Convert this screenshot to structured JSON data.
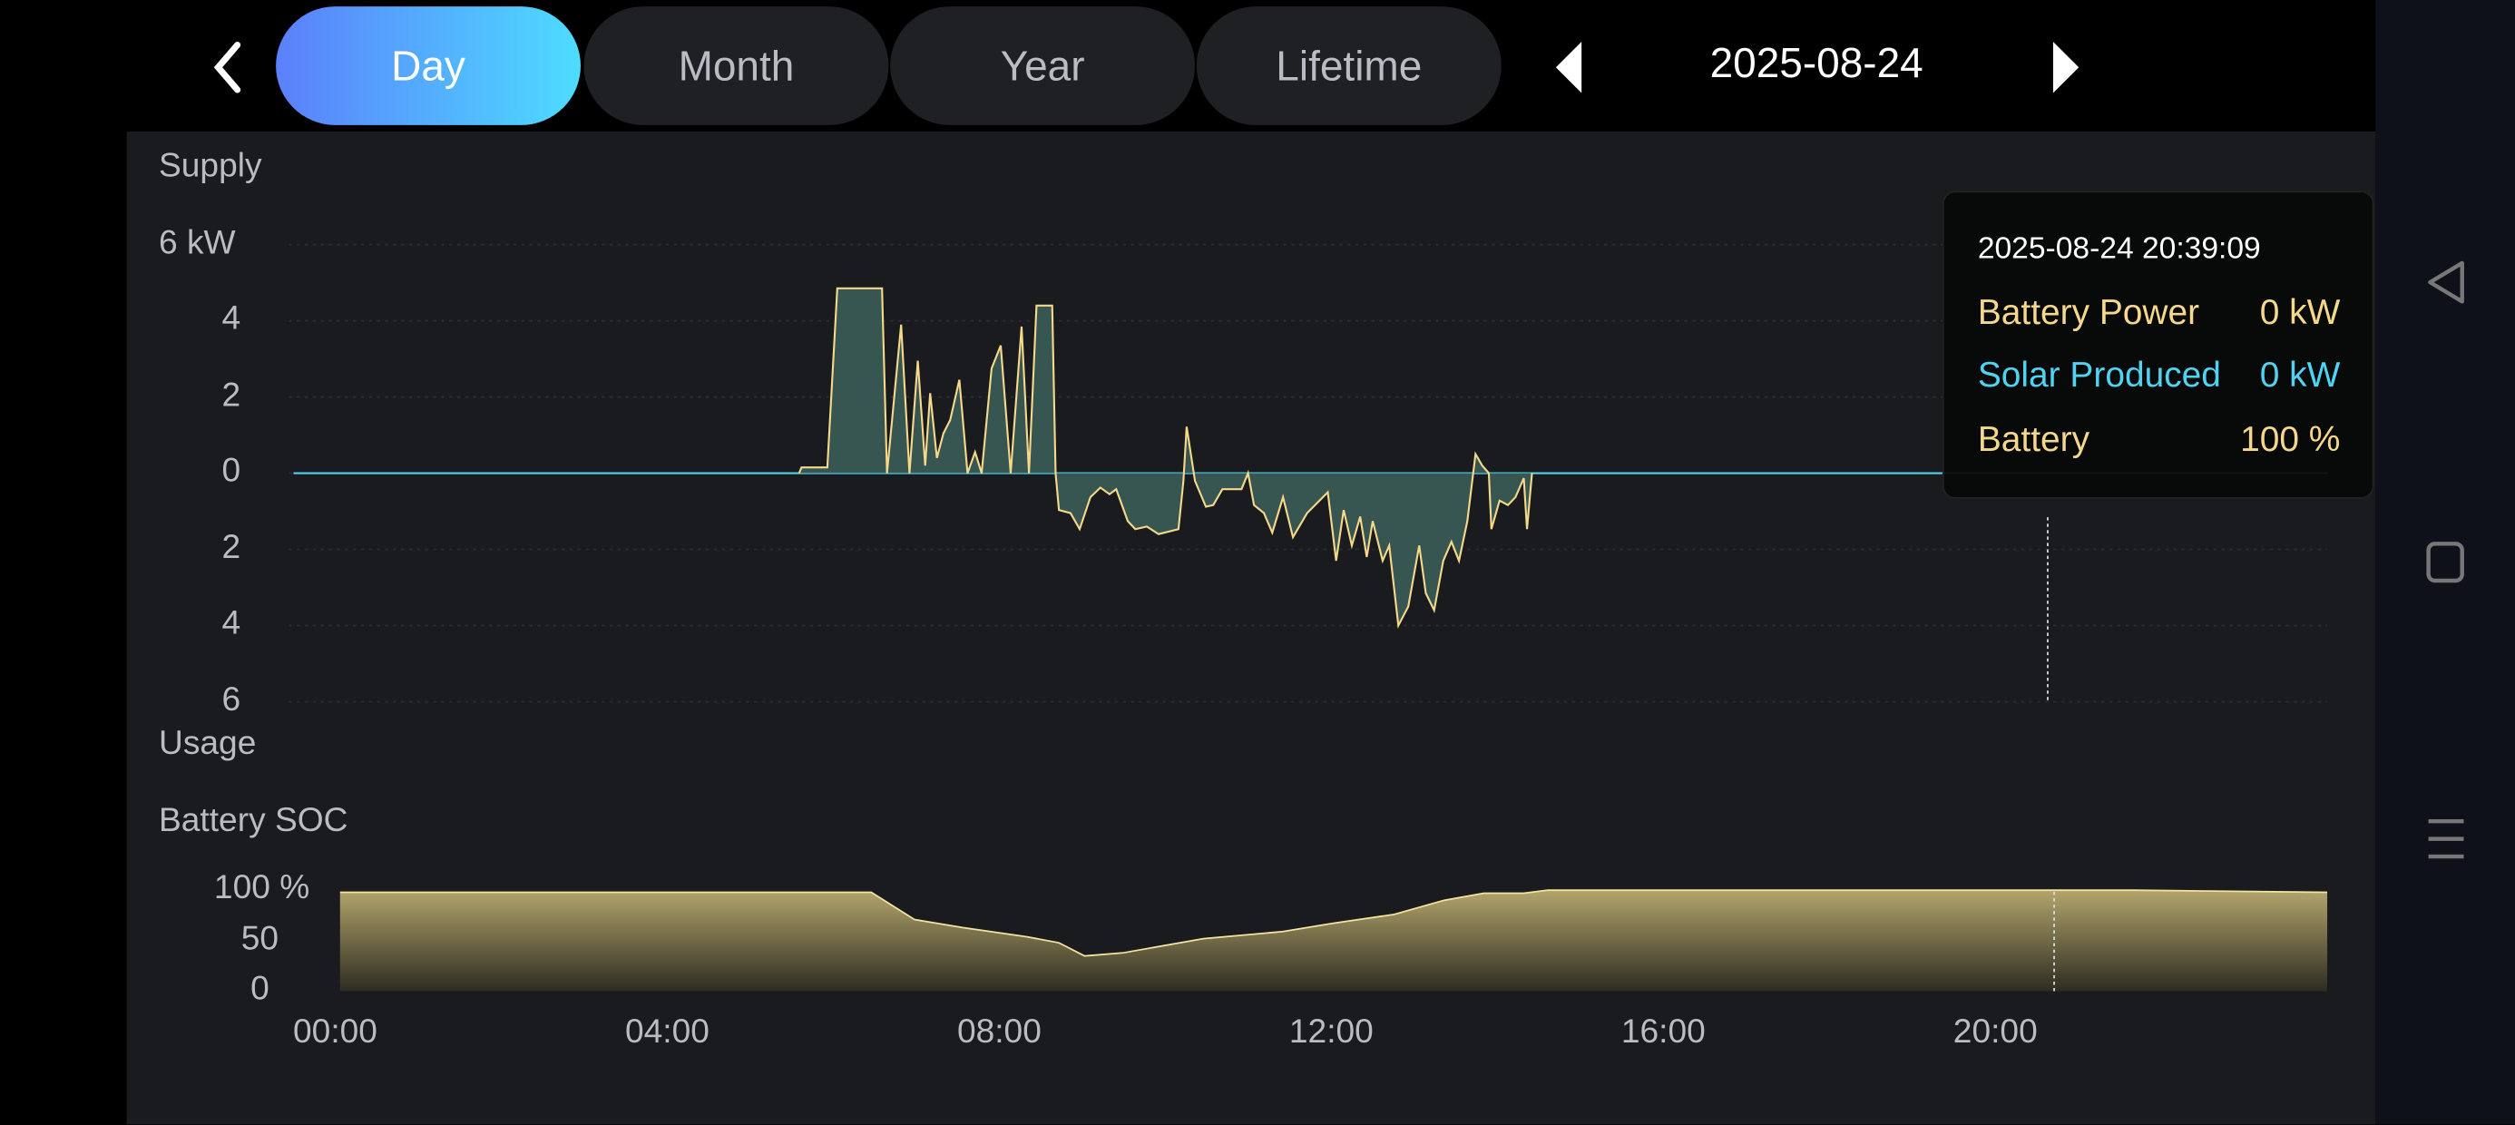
{
  "header": {
    "tabs": [
      {
        "label": "Day",
        "active": true
      },
      {
        "label": "Month"
      },
      {
        "label": "Year"
      },
      {
        "label": "Lifetime"
      }
    ],
    "date": "2025-08-24"
  },
  "colors": {
    "accent_start": "#5b7ffb",
    "accent_end": "#4ddcff",
    "battery": "#f5d88a",
    "solar": "#4fd3f2",
    "area": "#3a5a54"
  },
  "chart_data": [
    {
      "type": "area",
      "title": "Battery Power",
      "top_label": "Supply",
      "bottom_label": "Usage",
      "y_unit": "kW",
      "ylim": [
        -6,
        6
      ],
      "y_ticks": [
        {
          "v": 6,
          "label": "6 kW"
        },
        {
          "v": 4,
          "label": "4"
        },
        {
          "v": 2,
          "label": "2"
        },
        {
          "v": 0,
          "label": "0"
        },
        {
          "v": -2,
          "label": "2"
        },
        {
          "v": -4,
          "label": "4"
        },
        {
          "v": -6,
          "label": "6"
        }
      ],
      "x_unit": "hour",
      "series": [
        {
          "name": "Battery Power",
          "points": [
            [
              5.53,
              0
            ],
            [
              5.56,
              0.15
            ],
            [
              5.87,
              0.15
            ],
            [
              5.99,
              4.85
            ],
            [
              6.53,
              4.85
            ],
            [
              6.59,
              0
            ],
            [
              6.76,
              3.9
            ],
            [
              6.86,
              0
            ],
            [
              6.96,
              2.95
            ],
            [
              7.05,
              0.2
            ],
            [
              7.11,
              2.1
            ],
            [
              7.19,
              0.4
            ],
            [
              7.27,
              1.05
            ],
            [
              7.35,
              1.4
            ],
            [
              7.46,
              2.45
            ],
            [
              7.56,
              0
            ],
            [
              7.65,
              0.55
            ],
            [
              7.73,
              0
            ],
            [
              7.85,
              2.75
            ],
            [
              7.96,
              3.35
            ],
            [
              8.08,
              0
            ],
            [
              8.21,
              3.85
            ],
            [
              8.3,
              0
            ],
            [
              8.39,
              4.4
            ],
            [
              8.58,
              4.4
            ],
            [
              8.62,
              0
            ],
            [
              8.66,
              -0.97
            ],
            [
              8.8,
              -1.05
            ],
            [
              8.91,
              -1.47
            ],
            [
              9.04,
              -0.63
            ],
            [
              9.16,
              -0.38
            ],
            [
              9.27,
              -0.55
            ],
            [
              9.35,
              -0.42
            ],
            [
              9.49,
              -1.26
            ],
            [
              9.58,
              -1.47
            ],
            [
              9.72,
              -1.4
            ],
            [
              9.86,
              -1.6
            ],
            [
              10.1,
              -1.47
            ],
            [
              10.16,
              -0.2
            ],
            [
              10.2,
              1.22
            ],
            [
              10.3,
              -0.2
            ],
            [
              10.43,
              -0.88
            ],
            [
              10.52,
              -0.84
            ],
            [
              10.63,
              -0.42
            ],
            [
              10.86,
              -0.42
            ],
            [
              10.94,
              0
            ],
            [
              11.01,
              -0.84
            ],
            [
              11.13,
              -1.05
            ],
            [
              11.23,
              -1.56
            ],
            [
              11.36,
              -0.63
            ],
            [
              11.48,
              -1.68
            ],
            [
              11.65,
              -1.05
            ],
            [
              11.9,
              -0.5
            ],
            [
              12.0,
              -2.3
            ],
            [
              12.09,
              -0.97
            ],
            [
              12.19,
              -1.9
            ],
            [
              12.29,
              -1.14
            ],
            [
              12.37,
              -2.2
            ],
            [
              12.44,
              -1.26
            ],
            [
              12.56,
              -2.3
            ],
            [
              12.64,
              -1.9
            ],
            [
              12.75,
              -4.0
            ],
            [
              12.87,
              -3.5
            ],
            [
              13.0,
              -1.9
            ],
            [
              13.08,
              -3.15
            ],
            [
              13.18,
              -3.6
            ],
            [
              13.29,
              -2.3
            ],
            [
              13.39,
              -1.8
            ],
            [
              13.48,
              -2.3
            ],
            [
              13.58,
              -1.26
            ],
            [
              13.68,
              0.5
            ],
            [
              13.76,
              0.2
            ],
            [
              13.84,
              0
            ],
            [
              13.87,
              -1.47
            ],
            [
              13.97,
              -0.72
            ],
            [
              14.07,
              -0.84
            ],
            [
              14.16,
              -0.63
            ],
            [
              14.26,
              -0.13
            ],
            [
              14.3,
              -1.47
            ],
            [
              14.36,
              0
            ]
          ]
        },
        {
          "name": "Solar Produced",
          "points": [
            [
              0,
              0
            ],
            [
              23.94,
              0
            ]
          ]
        }
      ]
    },
    {
      "type": "area",
      "title": "Battery SOC",
      "y_unit": "%",
      "ylim": [
        0,
        100
      ],
      "y_ticks": [
        {
          "v": 100,
          "label": "100 %"
        },
        {
          "v": 50,
          "label": "50"
        },
        {
          "v": 0,
          "label": "0"
        }
      ],
      "x_ticks": [
        "00:00",
        "04:00",
        "08:00",
        "12:00",
        "16:00",
        "20:00"
      ],
      "series": [
        {
          "name": "Battery",
          "points": [
            [
              0,
              98
            ],
            [
              4.8,
              98
            ],
            [
              6.4,
              98
            ],
            [
              6.92,
              71
            ],
            [
              7.5,
              63
            ],
            [
              8.27,
              54
            ],
            [
              8.66,
              48
            ],
            [
              8.97,
              35
            ],
            [
              9.43,
              38
            ],
            [
              10.4,
              52
            ],
            [
              11.36,
              59
            ],
            [
              11.94,
              67
            ],
            [
              12.7,
              76
            ],
            [
              13.3,
              90
            ],
            [
              13.78,
              97
            ],
            [
              14.26,
              97
            ],
            [
              14.55,
              100
            ],
            [
              21.6,
              100
            ],
            [
              23.94,
              98
            ]
          ]
        }
      ]
    }
  ],
  "cursor_hour": 20.65,
  "tooltip": {
    "time": "2025-08-24 20:39:09",
    "rows": [
      {
        "label": "Battery Power",
        "value": "0 kW"
      },
      {
        "label": "Solar Produced",
        "value": "0 kW"
      },
      {
        "label": "Battery",
        "value": "100 %"
      }
    ]
  }
}
